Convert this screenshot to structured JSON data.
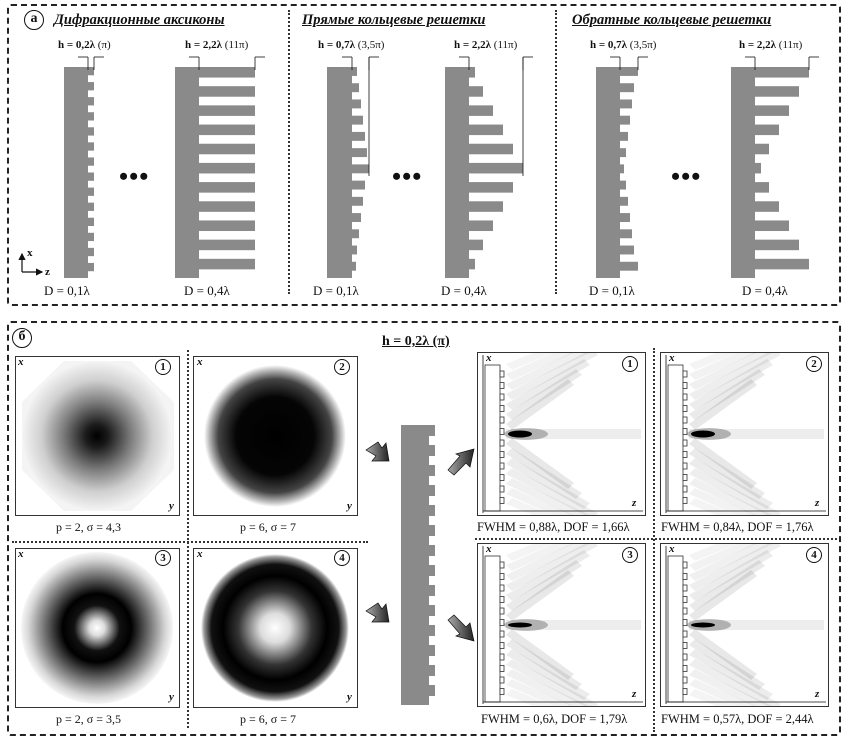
{
  "panel_a": {
    "label": "а",
    "sections": [
      {
        "title": "Дифракционные аксиконы",
        "h_left": "h = 0,2λ",
        "h_left_pi": "(π)",
        "h_right": "h = 2,2λ",
        "h_right_pi": "(11π)",
        "d_left": "D = 0,1λ",
        "d_right": "D = 0,4λ",
        "ellipsis": "•••"
      },
      {
        "title": "Прямые кольцевые решетки",
        "h_left": "h = 0,7λ",
        "h_left_pi": "(3,5π)",
        "h_right": "h = 2,2λ",
        "h_right_pi": "(11π)",
        "d_left": "D = 0,1λ",
        "d_right": "D = 0,4λ",
        "ellipsis": "•••"
      },
      {
        "title": "Обратные кольцевые решетки",
        "h_left": "h = 0,7λ",
        "h_left_pi": "(3,5π)",
        "h_right": "h = 2,2λ",
        "h_right_pi": "(11π)",
        "d_left": "D = 0,1λ",
        "d_right": "D = 0,4λ",
        "ellipsis": "•••"
      }
    ],
    "axis_x": "x",
    "axis_z": "z"
  },
  "panel_b": {
    "label": "б",
    "title": "h = 0,2λ (π)",
    "beams": [
      {
        "num": "1",
        "params": "p = 2, σ = 4,3",
        "axis_x": "x",
        "axis_y": "y"
      },
      {
        "num": "2",
        "params": "p = 6, σ = 7",
        "axis_x": "x",
        "axis_y": "y"
      },
      {
        "num": "3",
        "params": "p = 2, σ = 3,5",
        "axis_x": "x",
        "axis_y": "y"
      },
      {
        "num": "4",
        "params": "p = 6, σ = 7",
        "axis_x": "x",
        "axis_y": "y"
      }
    ],
    "results": [
      {
        "num": "1",
        "stats": "FWHM = 0,88λ, DOF = 1,66λ",
        "axis_x": "x",
        "axis_z": "z"
      },
      {
        "num": "2",
        "stats": "FWHM = 0,84λ, DOF = 1,76λ",
        "axis_x": "x",
        "axis_z": "z"
      },
      {
        "num": "3",
        "stats": "FWHM = 0,6λ, DOF = 1,79λ",
        "axis_x": "x",
        "axis_z": "z"
      },
      {
        "num": "4",
        "stats": "FWHM = 0,57λ, DOF = 2,44λ",
        "axis_x": "x",
        "axis_z": "z"
      }
    ]
  },
  "colors": {
    "structure": "#8a8a8a",
    "border": "#222222",
    "dark": "#000000"
  }
}
